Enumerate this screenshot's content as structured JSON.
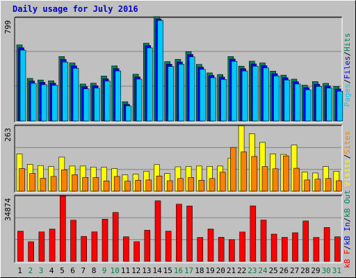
{
  "title": "Daily usage for July 2016",
  "colors": {
    "hits": "#00805c",
    "files": "#0000ff",
    "pages": "#00c8ff",
    "visits": "#ffff00",
    "sites": "#ff8000",
    "kbin": "#0000ff",
    "kbout": "#00805c",
    "kbf": "#ff0000",
    "weekday_label": "#000000",
    "weekend_label": "#008040"
  },
  "chart_data": {
    "type": "bar",
    "categories": [
      "1",
      "2",
      "3",
      "4",
      "5",
      "6",
      "7",
      "8",
      "9",
      "10",
      "11",
      "12",
      "13",
      "14",
      "15",
      "16",
      "17",
      "18",
      "19",
      "20",
      "21",
      "22",
      "23",
      "24",
      "25",
      "26",
      "27",
      "28",
      "29",
      "30",
      "31"
    ],
    "weekend_days": [
      "2",
      "3",
      "9",
      "10",
      "16",
      "17",
      "23",
      "24",
      "30",
      "31"
    ],
    "panels": [
      {
        "name": "top",
        "ylabel_parts": [
          {
            "text": "Pages",
            "color": "#00c8ff"
          },
          {
            "text": "/",
            "color": "#000000"
          },
          {
            "text": "Files",
            "color": "#0000ff"
          },
          {
            "text": "/",
            "color": "#000000"
          },
          {
            "text": "Hits",
            "color": "#00805c"
          }
        ],
        "ymax_label": "799",
        "ymax": 799,
        "series": [
          {
            "name": "Hits",
            "color": "#00805c",
            "values": [
              583,
              326,
              314,
              308,
              493,
              444,
              283,
              289,
              344,
              422,
              147,
              358,
              596,
              799,
              455,
              472,
              531,
              433,
              368,
              356,
              494,
              420,
              458,
              444,
              382,
              351,
              320,
              274,
              302,
              288,
              264
            ]
          },
          {
            "name": "Files",
            "color": "#0000ff",
            "values": [
              561,
              306,
              296,
              290,
              471,
              422,
              263,
              270,
              323,
              401,
              128,
              337,
              578,
              782,
              435,
              452,
              509,
              412,
              349,
              336,
              474,
              400,
              437,
              423,
              362,
              331,
              300,
              255,
              282,
              268,
              245
            ]
          },
          {
            "name": "Pages",
            "color": "#00c8ff",
            "values": [
              543,
              288,
              278,
              273,
              451,
              404,
              246,
              252,
              305,
              383,
              115,
              320,
              560,
              770,
              417,
              435,
              491,
              395,
              331,
              318,
              457,
              383,
              420,
              406,
              345,
              314,
              283,
              239,
              265,
              252,
              228
            ]
          }
        ]
      },
      {
        "name": "middle",
        "ylabel_parts": [
          {
            "text": "Visits",
            "color": "#ffff00"
          },
          {
            "text": "/",
            "color": "#000000"
          },
          {
            "text": "Sites",
            "color": "#ff8000"
          }
        ],
        "ymax_label": "263",
        "ymax": 263,
        "series": [
          {
            "name": "Visits",
            "color": "#ffff00",
            "values": [
              150,
              108,
              103,
              99,
              137,
              101,
              101,
              97,
              96,
              91,
              66,
              68,
              80,
              107,
              71,
              98,
              99,
              101,
              100,
              101,
              132,
              263,
              231,
              196,
              150,
              148,
              186,
              77,
              73,
              99,
              80
            ]
          },
          {
            "name": "Sites",
            "color": "#ff8000",
            "values": [
              91,
              71,
              52,
              59,
              86,
              66,
              55,
              55,
              41,
              59,
              40,
              44,
              45,
              61,
              42,
              51,
              55,
              44,
              51,
              76,
              176,
              158,
              140,
              99,
              90,
              142,
              92,
              45,
              48,
              51,
              42
            ]
          }
        ]
      },
      {
        "name": "bottom",
        "ylabel_parts": [
          {
            "text": "kB F",
            "color": "#ff0000"
          },
          {
            "text": "/",
            "color": "#000000"
          },
          {
            "text": "kB In",
            "color": "#0000ff"
          },
          {
            "text": "/",
            "color": "#000000"
          },
          {
            "text": "kB Out",
            "color": "#00805c"
          }
        ],
        "ymax_label": "34874",
        "ymax": 34874,
        "series": [
          {
            "name": "kB F",
            "color": "#ff0000",
            "values": [
              16090,
              10420,
              15680,
              17200,
              34874,
              21950,
              13320,
              15730,
              22510,
              26080,
              13090,
              10450,
              16630,
              32320,
              16090,
              30480,
              29530,
              12760,
              17260,
              12850,
              11590,
              15670,
              29590,
              22030,
              14520,
              12810,
              15230,
              21560,
              12760,
              18080,
              13100
            ]
          }
        ]
      }
    ]
  }
}
